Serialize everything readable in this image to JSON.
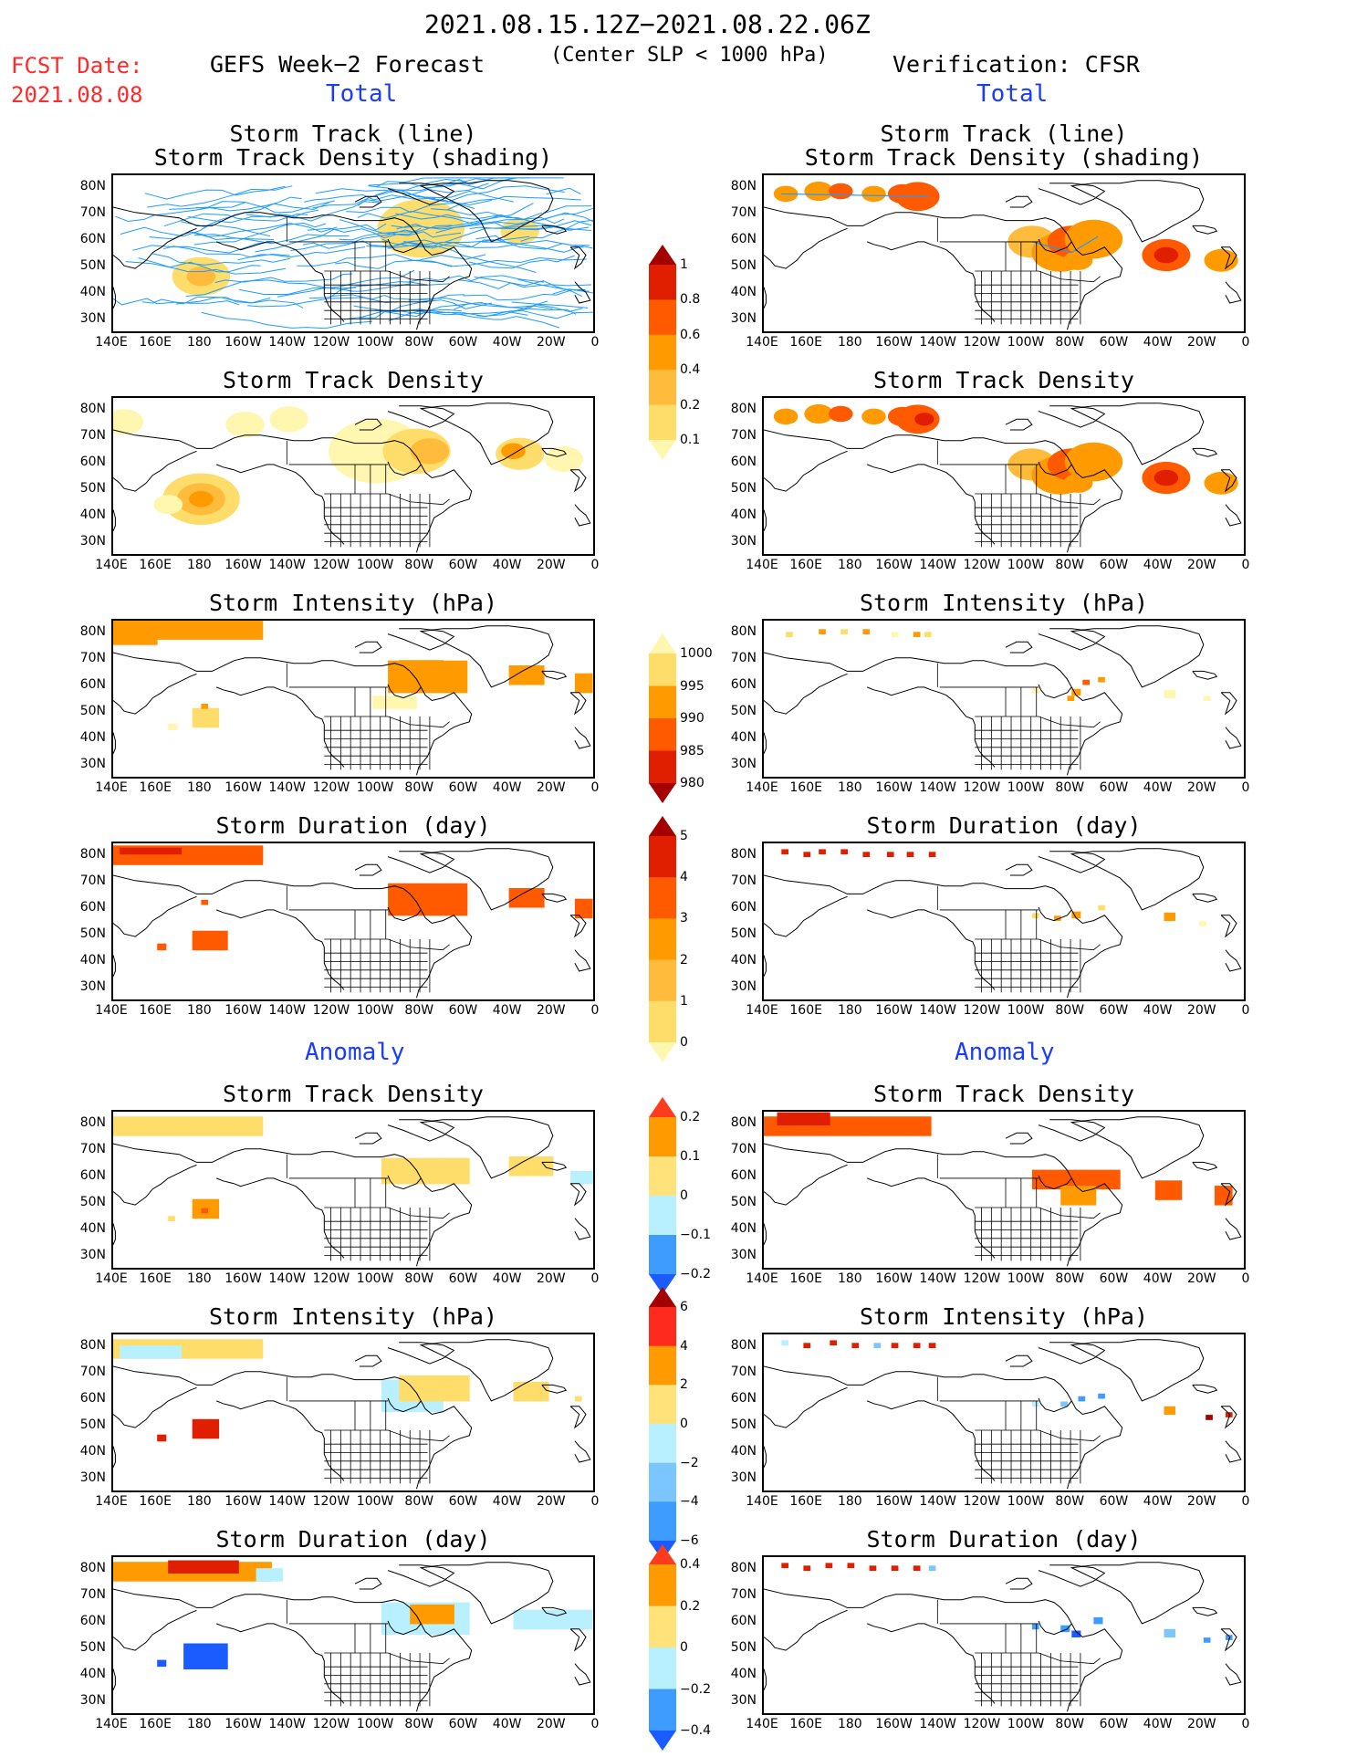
{
  "header": {
    "date_range": "2021.08.15.12Z−2021.08.22.06Z",
    "criterion": "(Center SLP < 1000 hPa)",
    "fcst_label": "FCST Date:",
    "fcst_date": "2021.08.08",
    "left_model": "GEFS Week−2 Forecast",
    "right_model": "Verification: CFSR",
    "total_label": "Total",
    "anomaly_label": "Anomaly"
  },
  "panel_titles": {
    "track_line": "Storm Track (line)",
    "track_shading": "Storm Track Density (shading)",
    "density": "Storm Track Density",
    "intensity": "Storm Intensity (hPa)",
    "duration": "Storm Duration (day)"
  },
  "axes": {
    "lat_labels": [
      "80N",
      "70N",
      "60N",
      "50N",
      "40N",
      "30N"
    ],
    "lon_labels": [
      "140E",
      "160E",
      "180",
      "160W",
      "140W",
      "120W",
      "100W",
      "80W",
      "60W",
      "40W",
      "20W",
      "0"
    ]
  },
  "colorbars": {
    "total_density": {
      "labels": [
        "1",
        "0.8",
        "0.6",
        "0.4",
        "0.2",
        "0.1"
      ],
      "colors": [
        "#a50000",
        "#e01e00",
        "#ff5a00",
        "#ff9a00",
        "#ffbb3c",
        "#ffdd6a",
        "#fff7b0"
      ]
    },
    "total_intensity": {
      "labels": [
        "1000",
        "995",
        "990",
        "985",
        "980"
      ],
      "colors": [
        "#fff7b0",
        "#ffdd6a",
        "#ff9a00",
        "#ff5a00",
        "#e01e00",
        "#a50000"
      ]
    },
    "total_duration": {
      "labels": [
        "5",
        "4",
        "3",
        "2",
        "1",
        "0"
      ],
      "colors": [
        "#a50000",
        "#e01e00",
        "#ff5a00",
        "#ff9a00",
        "#ffbb3c",
        "#ffdd6a",
        "#fff7b0"
      ]
    },
    "anom_density": {
      "labels": [
        "0.2",
        "0.1",
        "0",
        "−0.1",
        "−0.2"
      ],
      "colors": [
        "#ff3b1e",
        "#ff9a00",
        "#ffe27a",
        "#b8f0ff",
        "#3e9cff",
        "#1a5cff"
      ]
    },
    "anom_intensity": {
      "labels": [
        "6",
        "4",
        "2",
        "0",
        "−2",
        "−4",
        "−6"
      ],
      "colors": [
        "#a50000",
        "#ff2a1e",
        "#ff9a00",
        "#ffe27a",
        "#b8f0ff",
        "#7cc6ff",
        "#3e9cff",
        "#1a5cff"
      ]
    },
    "anom_duration": {
      "labels": [
        "0.4",
        "0.2",
        "0",
        "−0.2",
        "−0.4"
      ],
      "colors": [
        "#ff3b1e",
        "#ff9a00",
        "#ffe27a",
        "#b8f0ff",
        "#3e9cff",
        "#1a5cff"
      ]
    }
  }
}
